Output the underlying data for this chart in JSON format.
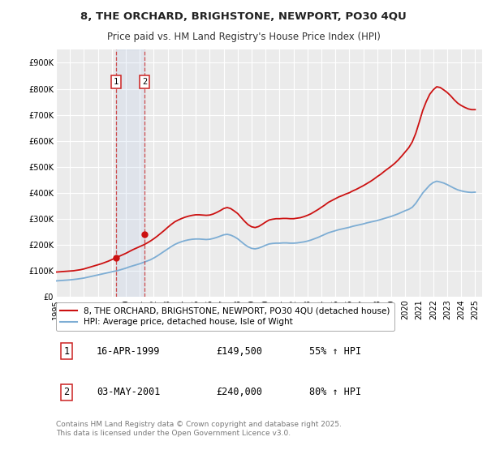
{
  "title": "8, THE ORCHARD, BRIGHSTONE, NEWPORT, PO30 4QU",
  "subtitle": "Price paid vs. HM Land Registry's House Price Index (HPI)",
  "ylim": [
    0,
    950000
  ],
  "xlim_start": 1995.0,
  "xlim_end": 2025.5,
  "yticks": [
    0,
    100000,
    200000,
    300000,
    400000,
    500000,
    600000,
    700000,
    800000,
    900000
  ],
  "ytick_labels": [
    "£0",
    "£100K",
    "£200K",
    "£300K",
    "£400K",
    "£500K",
    "£600K",
    "£700K",
    "£800K",
    "£900K"
  ],
  "xticks": [
    1995,
    1996,
    1997,
    1998,
    1999,
    2000,
    2001,
    2002,
    2003,
    2004,
    2005,
    2006,
    2007,
    2008,
    2009,
    2010,
    2011,
    2012,
    2013,
    2014,
    2015,
    2016,
    2017,
    2018,
    2019,
    2020,
    2021,
    2022,
    2023,
    2024,
    2025
  ],
  "background_color": "#ffffff",
  "plot_bg_color": "#ebebeb",
  "grid_color": "#ffffff",
  "transaction1_x": 1999.29,
  "transaction1_y": 149500,
  "transaction2_x": 2001.34,
  "transaction2_y": 240000,
  "hpi_line_color": "#7dadd4",
  "property_line_color": "#cc1111",
  "hpi_data_x": [
    1995.0,
    1995.25,
    1995.5,
    1995.75,
    1996.0,
    1996.25,
    1996.5,
    1996.75,
    1997.0,
    1997.25,
    1997.5,
    1997.75,
    1998.0,
    1998.25,
    1998.5,
    1998.75,
    1999.0,
    1999.25,
    1999.5,
    1999.75,
    2000.0,
    2000.25,
    2000.5,
    2000.75,
    2001.0,
    2001.25,
    2001.5,
    2001.75,
    2002.0,
    2002.25,
    2002.5,
    2002.75,
    2003.0,
    2003.25,
    2003.5,
    2003.75,
    2004.0,
    2004.25,
    2004.5,
    2004.75,
    2005.0,
    2005.25,
    2005.5,
    2005.75,
    2006.0,
    2006.25,
    2006.5,
    2006.75,
    2007.0,
    2007.25,
    2007.5,
    2007.75,
    2008.0,
    2008.25,
    2008.5,
    2008.75,
    2009.0,
    2009.25,
    2009.5,
    2009.75,
    2010.0,
    2010.25,
    2010.5,
    2010.75,
    2011.0,
    2011.25,
    2011.5,
    2011.75,
    2012.0,
    2012.25,
    2012.5,
    2012.75,
    2013.0,
    2013.25,
    2013.5,
    2013.75,
    2014.0,
    2014.25,
    2014.5,
    2014.75,
    2015.0,
    2015.25,
    2015.5,
    2015.75,
    2016.0,
    2016.25,
    2016.5,
    2016.75,
    2017.0,
    2017.25,
    2017.5,
    2017.75,
    2018.0,
    2018.25,
    2018.5,
    2018.75,
    2019.0,
    2019.25,
    2019.5,
    2019.75,
    2020.0,
    2020.25,
    2020.5,
    2020.75,
    2021.0,
    2021.25,
    2021.5,
    2021.75,
    2022.0,
    2022.25,
    2022.5,
    2022.75,
    2023.0,
    2023.25,
    2023.5,
    2023.75,
    2024.0,
    2024.25,
    2024.5,
    2024.75,
    2025.0
  ],
  "hpi_data_y": [
    62000,
    63000,
    64000,
    65000,
    66000,
    67500,
    69000,
    71000,
    73000,
    76000,
    79000,
    82000,
    85000,
    88000,
    91000,
    94000,
    97000,
    100000,
    103000,
    107000,
    111000,
    116000,
    120000,
    124000,
    128000,
    133000,
    138000,
    143000,
    150000,
    158000,
    167000,
    176000,
    185000,
    194000,
    202000,
    208000,
    213000,
    217000,
    220000,
    222000,
    223000,
    223000,
    222000,
    221000,
    222000,
    225000,
    229000,
    234000,
    239000,
    241000,
    238000,
    232000,
    224000,
    213000,
    202000,
    193000,
    187000,
    185000,
    188000,
    193000,
    199000,
    204000,
    206000,
    207000,
    207000,
    208000,
    208000,
    207000,
    207000,
    208000,
    210000,
    212000,
    215000,
    219000,
    224000,
    229000,
    235000,
    241000,
    247000,
    251000,
    255000,
    259000,
    262000,
    265000,
    268000,
    272000,
    275000,
    278000,
    281000,
    285000,
    288000,
    291000,
    294000,
    298000,
    302000,
    306000,
    310000,
    315000,
    320000,
    326000,
    332000,
    337000,
    345000,
    360000,
    380000,
    400000,
    415000,
    430000,
    440000,
    445000,
    442000,
    438000,
    432000,
    425000,
    418000,
    412000,
    408000,
    405000,
    403000,
    402000,
    403000
  ],
  "property_data_x": [
    1995.0,
    1995.25,
    1995.5,
    1995.75,
    1996.0,
    1996.25,
    1996.5,
    1996.75,
    1997.0,
    1997.25,
    1997.5,
    1997.75,
    1998.0,
    1998.25,
    1998.5,
    1998.75,
    1999.0,
    1999.25,
    1999.5,
    1999.75,
    2000.0,
    2000.25,
    2000.5,
    2000.75,
    2001.0,
    2001.25,
    2001.5,
    2001.75,
    2002.0,
    2002.25,
    2002.5,
    2002.75,
    2003.0,
    2003.25,
    2003.5,
    2003.75,
    2004.0,
    2004.25,
    2004.5,
    2004.75,
    2005.0,
    2005.25,
    2005.5,
    2005.75,
    2006.0,
    2006.25,
    2006.5,
    2006.75,
    2007.0,
    2007.25,
    2007.5,
    2007.75,
    2008.0,
    2008.25,
    2008.5,
    2008.75,
    2009.0,
    2009.25,
    2009.5,
    2009.75,
    2010.0,
    2010.25,
    2010.5,
    2010.75,
    2011.0,
    2011.25,
    2011.5,
    2011.75,
    2012.0,
    2012.25,
    2012.5,
    2012.75,
    2013.0,
    2013.25,
    2013.5,
    2013.75,
    2014.0,
    2014.25,
    2014.5,
    2014.75,
    2015.0,
    2015.25,
    2015.5,
    2015.75,
    2016.0,
    2016.25,
    2016.5,
    2016.75,
    2017.0,
    2017.25,
    2017.5,
    2017.75,
    2018.0,
    2018.25,
    2018.5,
    2018.75,
    2019.0,
    2019.25,
    2019.5,
    2019.75,
    2020.0,
    2020.25,
    2020.5,
    2020.75,
    2021.0,
    2021.25,
    2021.5,
    2021.75,
    2022.0,
    2022.25,
    2022.5,
    2022.75,
    2023.0,
    2023.25,
    2023.5,
    2023.75,
    2024.0,
    2024.25,
    2024.5,
    2024.75,
    2025.0
  ],
  "property_data_y": [
    96000,
    97000,
    98000,
    99000,
    100000,
    101000,
    103000,
    105000,
    108000,
    112000,
    116000,
    120000,
    124000,
    128000,
    133000,
    138000,
    144000,
    150000,
    156000,
    162000,
    168000,
    175000,
    182000,
    188000,
    194000,
    200000,
    207000,
    215000,
    224000,
    234000,
    245000,
    256000,
    268000,
    279000,
    289000,
    296000,
    302000,
    307000,
    311000,
    314000,
    316000,
    316000,
    315000,
    314000,
    315000,
    319000,
    325000,
    332000,
    340000,
    344000,
    340000,
    331000,
    321000,
    306000,
    291000,
    278000,
    270000,
    267000,
    271000,
    279000,
    288000,
    296000,
    299000,
    301000,
    301000,
    302000,
    302000,
    301000,
    301000,
    303000,
    305000,
    309000,
    314000,
    320000,
    328000,
    336000,
    345000,
    354000,
    364000,
    371000,
    378000,
    385000,
    390000,
    396000,
    401000,
    408000,
    414000,
    421000,
    428000,
    436000,
    444000,
    453000,
    463000,
    472000,
    483000,
    493000,
    503000,
    514000,
    527000,
    542000,
    558000,
    574000,
    596000,
    629000,
    672000,
    717000,
    751000,
    779000,
    796000,
    808000,
    805000,
    796000,
    786000,
    773000,
    758000,
    745000,
    736000,
    729000,
    723000,
    720000,
    720000
  ],
  "legend_label_property": "8, THE ORCHARD, BRIGHSTONE, NEWPORT, PO30 4QU (detached house)",
  "legend_label_hpi": "HPI: Average price, detached house, Isle of Wight",
  "table_rows": [
    {
      "num": "1",
      "date": "16-APR-1999",
      "price": "£149,500",
      "hpi": "55% ↑ HPI"
    },
    {
      "num": "2",
      "date": "03-MAY-2001",
      "price": "£240,000",
      "hpi": "80% ↑ HPI"
    }
  ],
  "footnote": "Contains HM Land Registry data © Crown copyright and database right 2025.\nThis data is licensed under the Open Government Licence v3.0.",
  "title_fontsize": 9.5,
  "subtitle_fontsize": 8.5,
  "tick_fontsize": 7,
  "legend_fontsize": 7.5,
  "table_fontsize": 8.5,
  "footnote_fontsize": 6.5
}
